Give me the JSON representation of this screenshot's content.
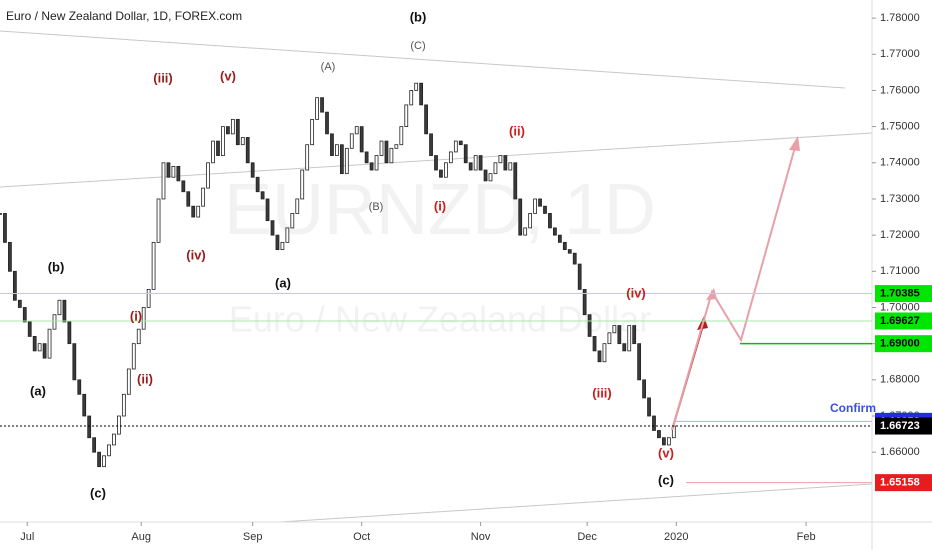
{
  "chart_data": {
    "type": "candlestick",
    "title": "Euro / New Zealand Dollar, 1D, FOREX.com",
    "watermark": "EURNZD, 1D",
    "watermark_subtitle": "Euro / New Zealand Dollar",
    "up_color": "#ffffff",
    "down_color": "#3a3a3a",
    "closes": [
      1.726,
      1.718,
      1.71,
      1.702,
      1.7,
      1.696,
      1.692,
      1.688,
      1.69,
      1.686,
      1.694,
      1.698,
      1.702,
      1.696,
      1.69,
      1.68,
      1.676,
      1.67,
      1.664,
      1.66,
      1.656,
      1.659,
      1.662,
      1.665,
      1.67,
      1.676,
      1.683,
      1.69,
      1.694,
      1.7,
      1.705,
      1.718,
      1.73,
      1.74,
      1.736,
      1.739,
      1.735,
      1.732,
      1.728,
      1.725,
      1.728,
      1.733,
      1.74,
      1.746,
      1.742,
      1.75,
      1.748,
      1.752,
      1.745,
      1.747,
      1.74,
      1.736,
      1.732,
      1.73,
      1.724,
      1.72,
      1.716,
      1.718,
      1.722,
      1.726,
      1.73,
      1.738,
      1.745,
      1.752,
      1.758,
      1.754,
      1.748,
      1.742,
      1.745,
      1.737,
      1.744,
      1.748,
      1.75,
      1.743,
      1.74,
      1.738,
      1.742,
      1.746,
      1.74,
      1.744,
      1.745,
      1.75,
      1.756,
      1.76,
      1.762,
      1.756,
      1.748,
      1.742,
      1.738,
      1.736,
      1.74,
      1.743,
      1.746,
      1.745,
      1.74,
      1.738,
      1.742,
      1.738,
      1.735,
      1.737,
      1.74,
      1.742,
      1.738,
      1.74,
      1.73,
      1.72,
      1.722,
      1.726,
      1.73,
      1.728,
      1.726,
      1.722,
      1.72,
      1.718,
      1.716,
      1.715,
      1.712,
      1.705,
      1.698,
      1.692,
      1.688,
      1.685,
      1.69,
      1.693,
      1.695,
      1.69,
      1.688,
      1.695,
      1.69,
      1.68,
      1.675,
      1.67,
      1.666,
      1.664,
      1.662,
      1.664,
      1.66723
    ],
    "xlim": [
      0,
      176
    ],
    "xticks": [
      {
        "value": 5.5,
        "label": "Jul"
      },
      {
        "value": 28.5,
        "label": "Aug"
      },
      {
        "value": 51,
        "label": "Sep"
      },
      {
        "value": 73,
        "label": "Oct"
      },
      {
        "value": 97,
        "label": "Nov"
      },
      {
        "value": 118.5,
        "label": "Dec"
      },
      {
        "value": 136.5,
        "label": "2020"
      },
      {
        "value": 162.7,
        "label": "Feb"
      }
    ],
    "ylim": [
      1.6407,
      1.785
    ],
    "yticks": [
      {
        "value": 1.66,
        "label": "1.66000"
      },
      {
        "value": 1.67,
        "label": "1.67000"
      },
      {
        "value": 1.68,
        "label": "1.68000"
      },
      {
        "value": 1.69,
        "label": "1.69000"
      },
      {
        "value": 1.7,
        "label": "1.70000"
      },
      {
        "value": 1.71,
        "label": "1.71000"
      },
      {
        "value": 1.72,
        "label": "1.72000"
      },
      {
        "value": 1.73,
        "label": "1.73000"
      },
      {
        "value": 1.74,
        "label": "1.74000"
      },
      {
        "value": 1.75,
        "label": "1.75000"
      },
      {
        "value": 1.76,
        "label": "1.76000"
      },
      {
        "value": 1.77,
        "label": "1.77000"
      },
      {
        "value": 1.78,
        "label": "1.78000"
      }
    ],
    "levels": [
      {
        "price": 1.70385,
        "color": "#00e600",
        "line": "#a8e6a8"
      },
      {
        "price": 1.69627,
        "color": "#00e600",
        "line": "#a8e6a8"
      },
      {
        "price": {
          "value": 1.69,
          "label": "1.69000"
        },
        "color": "#00e600",
        "line": "#00c000"
      },
      {
        "price": 1.66852,
        "color": "#1f2fe0",
        "line": "#aab4f0"
      },
      {
        "price": 1.66723,
        "color": "#000000",
        "line": "#000000"
      },
      {
        "price": 1.65158,
        "color": "#e81c1c",
        "line": "#f0a0a0"
      }
    ],
    "annotations": [
      {
        "text": "(b)",
        "color": "#111111"
      },
      {
        "text": "(C)",
        "color": "#555555"
      },
      {
        "text": "(A)",
        "color": "#555555"
      },
      {
        "text": "(B)",
        "color": "#555555"
      },
      {
        "text": "(a)",
        "color": "#111111"
      },
      {
        "text": "(iii)",
        "color": "#9b1b1b"
      },
      {
        "text": "(v)",
        "color": "#9b1b1b"
      },
      {
        "text": "(iv)",
        "color": "#9b1b1b"
      },
      {
        "text": "(i)",
        "color": "#9b1b1b"
      },
      {
        "text": "(ii)",
        "color": "#9b1b1b"
      },
      {
        "text": "(b)",
        "color": "#111111"
      },
      {
        "text": "(a)",
        "color": "#111111"
      },
      {
        "text": "(c)",
        "color": "#111111"
      },
      {
        "text": "(ii)",
        "color": "#c81e1e"
      },
      {
        "text": "(i)",
        "color": "#c81e1e"
      },
      {
        "text": "(iv)",
        "color": "#c81e1e"
      },
      {
        "text": "(iii)",
        "color": "#c81e1e"
      },
      {
        "text": "(v)",
        "color": "#c81e1e"
      },
      {
        "text": "(c)",
        "color": "#111111"
      },
      {
        "text": "Confirm",
        "color": "#3a50e0"
      }
    ]
  }
}
